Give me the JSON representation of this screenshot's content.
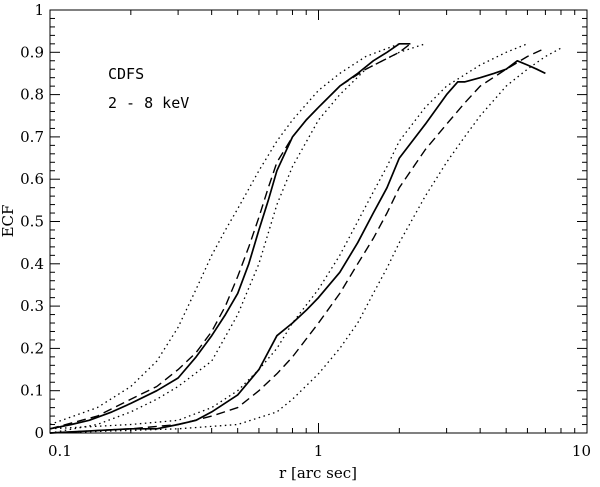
{
  "chart_data": {
    "type": "line",
    "title": "",
    "xlabel": "r [arc sec]",
    "ylabel": "ECF",
    "xscale": "log",
    "xlim": [
      0.1,
      10
    ],
    "ylim": [
      0,
      1
    ],
    "x_ticks": [
      0.1,
      1,
      10
    ],
    "x_tick_labels": [
      "0.1",
      "1",
      "10"
    ],
    "y_ticks": [
      0,
      0.1,
      0.2,
      0.3,
      0.4,
      0.5,
      0.6,
      0.7,
      0.8,
      0.9,
      1
    ],
    "y_tick_labels": [
      "0",
      "0.1",
      "0.2",
      "0.3",
      "0.4",
      "0.5",
      "0.6",
      "0.7",
      "0.8",
      "0.9",
      "1"
    ],
    "grid": false,
    "annotations": [
      "CDFS",
      "2 - 8 keV"
    ],
    "series": [
      {
        "group": "inner",
        "style": "solid",
        "points": [
          [
            0.1,
            0.01
          ],
          [
            0.12,
            0.02
          ],
          [
            0.14,
            0.03
          ],
          [
            0.17,
            0.05
          ],
          [
            0.2,
            0.07
          ],
          [
            0.25,
            0.1
          ],
          [
            0.3,
            0.13
          ],
          [
            0.35,
            0.18
          ],
          [
            0.4,
            0.23
          ],
          [
            0.45,
            0.28
          ],
          [
            0.5,
            0.33
          ],
          [
            0.55,
            0.4
          ],
          [
            0.6,
            0.48
          ],
          [
            0.65,
            0.55
          ],
          [
            0.7,
            0.62
          ],
          [
            0.8,
            0.7
          ],
          [
            0.9,
            0.74
          ],
          [
            1.0,
            0.77
          ],
          [
            1.2,
            0.82
          ],
          [
            1.4,
            0.85
          ],
          [
            1.6,
            0.88
          ],
          [
            1.8,
            0.9
          ],
          [
            2.0,
            0.92
          ],
          [
            2.2,
            0.92
          ]
        ]
      },
      {
        "group": "inner",
        "style": "dashed",
        "points": [
          [
            0.1,
            0.01
          ],
          [
            0.15,
            0.04
          ],
          [
            0.2,
            0.08
          ],
          [
            0.25,
            0.11
          ],
          [
            0.3,
            0.15
          ],
          [
            0.35,
            0.19
          ],
          [
            0.4,
            0.24
          ],
          [
            0.45,
            0.3
          ],
          [
            0.5,
            0.37
          ],
          [
            0.55,
            0.44
          ],
          [
            0.6,
            0.51
          ],
          [
            0.65,
            0.58
          ],
          [
            0.7,
            0.64
          ],
          [
            0.8,
            0.7
          ],
          [
            0.9,
            0.74
          ],
          [
            1.0,
            0.77
          ],
          [
            1.2,
            0.82
          ],
          [
            1.5,
            0.86
          ],
          [
            2.0,
            0.9
          ],
          [
            2.2,
            0.92
          ]
        ]
      },
      {
        "group": "inner",
        "style": "dotted",
        "points": [
          [
            0.1,
            0.02
          ],
          [
            0.15,
            0.06
          ],
          [
            0.2,
            0.11
          ],
          [
            0.25,
            0.17
          ],
          [
            0.3,
            0.25
          ],
          [
            0.35,
            0.34
          ],
          [
            0.4,
            0.42
          ],
          [
            0.45,
            0.48
          ],
          [
            0.5,
            0.53
          ],
          [
            0.6,
            0.62
          ],
          [
            0.7,
            0.69
          ],
          [
            0.8,
            0.74
          ],
          [
            1.0,
            0.81
          ],
          [
            1.2,
            0.85
          ],
          [
            1.5,
            0.89
          ],
          [
            2.0,
            0.92
          ]
        ]
      },
      {
        "group": "inner",
        "style": "dotted",
        "points": [
          [
            0.1,
            0.0
          ],
          [
            0.15,
            0.02
          ],
          [
            0.2,
            0.05
          ],
          [
            0.25,
            0.08
          ],
          [
            0.3,
            0.11
          ],
          [
            0.4,
            0.17
          ],
          [
            0.5,
            0.28
          ],
          [
            0.6,
            0.4
          ],
          [
            0.7,
            0.54
          ],
          [
            0.8,
            0.63
          ],
          [
            1.0,
            0.74
          ],
          [
            1.2,
            0.8
          ],
          [
            1.5,
            0.86
          ],
          [
            2.0,
            0.9
          ],
          [
            2.5,
            0.92
          ]
        ]
      },
      {
        "group": "outer",
        "style": "solid",
        "points": [
          [
            0.1,
            0.0
          ],
          [
            0.2,
            0.01
          ],
          [
            0.25,
            0.01
          ],
          [
            0.3,
            0.02
          ],
          [
            0.35,
            0.03
          ],
          [
            0.4,
            0.05
          ],
          [
            0.5,
            0.09
          ],
          [
            0.6,
            0.15
          ],
          [
            0.7,
            0.23
          ],
          [
            0.8,
            0.26
          ],
          [
            0.9,
            0.29
          ],
          [
            1.0,
            0.32
          ],
          [
            1.2,
            0.38
          ],
          [
            1.4,
            0.45
          ],
          [
            1.6,
            0.52
          ],
          [
            1.8,
            0.58
          ],
          [
            2.0,
            0.65
          ],
          [
            2.5,
            0.73
          ],
          [
            3.0,
            0.8
          ],
          [
            3.3,
            0.83
          ],
          [
            3.5,
            0.83
          ],
          [
            4.0,
            0.84
          ],
          [
            4.5,
            0.85
          ],
          [
            5.0,
            0.86
          ],
          [
            5.5,
            0.88
          ],
          [
            6.0,
            0.87
          ],
          [
            6.5,
            0.86
          ],
          [
            7.0,
            0.85
          ]
        ]
      },
      {
        "group": "outer",
        "style": "dashed",
        "points": [
          [
            0.1,
            0.0
          ],
          [
            0.2,
            0.01
          ],
          [
            0.3,
            0.02
          ],
          [
            0.4,
            0.04
          ],
          [
            0.5,
            0.06
          ],
          [
            0.6,
            0.1
          ],
          [
            0.7,
            0.14
          ],
          [
            0.8,
            0.18
          ],
          [
            1.0,
            0.26
          ],
          [
            1.2,
            0.33
          ],
          [
            1.4,
            0.4
          ],
          [
            1.6,
            0.46
          ],
          [
            1.8,
            0.52
          ],
          [
            2.0,
            0.58
          ],
          [
            2.5,
            0.67
          ],
          [
            3.0,
            0.73
          ],
          [
            3.5,
            0.78
          ],
          [
            4.0,
            0.82
          ],
          [
            5.0,
            0.86
          ],
          [
            6.0,
            0.89
          ],
          [
            7.0,
            0.91
          ]
        ]
      },
      {
        "group": "outer",
        "style": "dotted",
        "points": [
          [
            0.1,
            0.01
          ],
          [
            0.2,
            0.02
          ],
          [
            0.3,
            0.03
          ],
          [
            0.4,
            0.06
          ],
          [
            0.5,
            0.1
          ],
          [
            0.6,
            0.15
          ],
          [
            0.7,
            0.2
          ],
          [
            0.8,
            0.26
          ],
          [
            1.0,
            0.34
          ],
          [
            1.2,
            0.42
          ],
          [
            1.4,
            0.5
          ],
          [
            1.6,
            0.57
          ],
          [
            1.8,
            0.63
          ],
          [
            2.0,
            0.69
          ],
          [
            2.5,
            0.77
          ],
          [
            3.0,
            0.82
          ],
          [
            4.0,
            0.87
          ],
          [
            5.0,
            0.9
          ],
          [
            6.0,
            0.92
          ]
        ]
      },
      {
        "group": "outer",
        "style": "dotted",
        "points": [
          [
            0.1,
            0.0
          ],
          [
            0.3,
            0.01
          ],
          [
            0.5,
            0.02
          ],
          [
            0.7,
            0.05
          ],
          [
            0.8,
            0.08
          ],
          [
            1.0,
            0.14
          ],
          [
            1.2,
            0.2
          ],
          [
            1.4,
            0.26
          ],
          [
            1.6,
            0.33
          ],
          [
            1.8,
            0.39
          ],
          [
            2.0,
            0.45
          ],
          [
            2.5,
            0.56
          ],
          [
            3.0,
            0.64
          ],
          [
            3.5,
            0.7
          ],
          [
            4.0,
            0.75
          ],
          [
            5.0,
            0.82
          ],
          [
            6.0,
            0.86
          ],
          [
            7.0,
            0.89
          ],
          [
            8.0,
            0.91
          ]
        ]
      }
    ]
  }
}
